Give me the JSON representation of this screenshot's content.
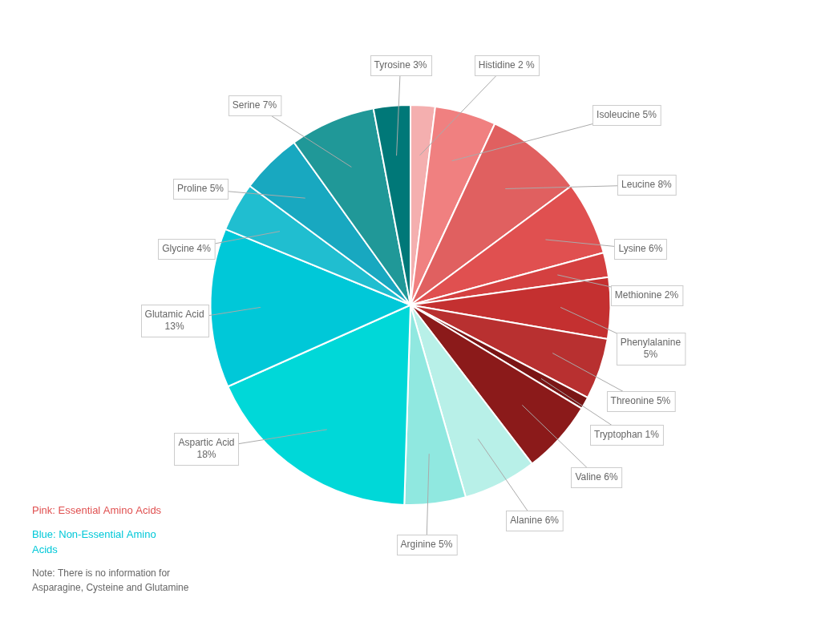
{
  "chart_data": {
    "type": "pie",
    "categories": [
      "Histidine 2 %",
      "Isoleucine 5%",
      "Leucine 8%",
      "Lysine 6%",
      "Methionine 2%",
      "Phenylalanine\n5%",
      "Threonine 5%",
      "Tryptophan 1%",
      "Valine 6%",
      "Alanine 6%",
      "Arginine 5%",
      "Aspartic Acid\n18%",
      "Glutamic Acid\n13%",
      "Glycine 4%",
      "Proline 5%",
      "Serine 7%",
      "Tyrosine 3%"
    ],
    "values": [
      2,
      5,
      8,
      6,
      2,
      5,
      5,
      1,
      6,
      6,
      5,
      18,
      13,
      4,
      5,
      7,
      3
    ],
    "colors": [
      "#F4AFAF",
      "#F08080",
      "#E06060",
      "#E05050",
      "#D44040",
      "#C43030",
      "#B83030",
      "#7A1515",
      "#8B1A1A",
      "#B8F0E8",
      "#90E8E0",
      "#00D8D8",
      "#00C8D8",
      "#20BED0",
      "#18A8C0",
      "#209898",
      "#007878"
    ],
    "annotations": [
      {
        "text": "Pink: Essential Amino Acids",
        "color": "#E05050"
      },
      {
        "text": "Blue: Non-Essential Amino\nAcids",
        "color": "#00C8D8"
      },
      {
        "text": "Note: There is no information for\nAsparagine, Cysteine and Glutamine",
        "color": "#666666"
      }
    ]
  }
}
